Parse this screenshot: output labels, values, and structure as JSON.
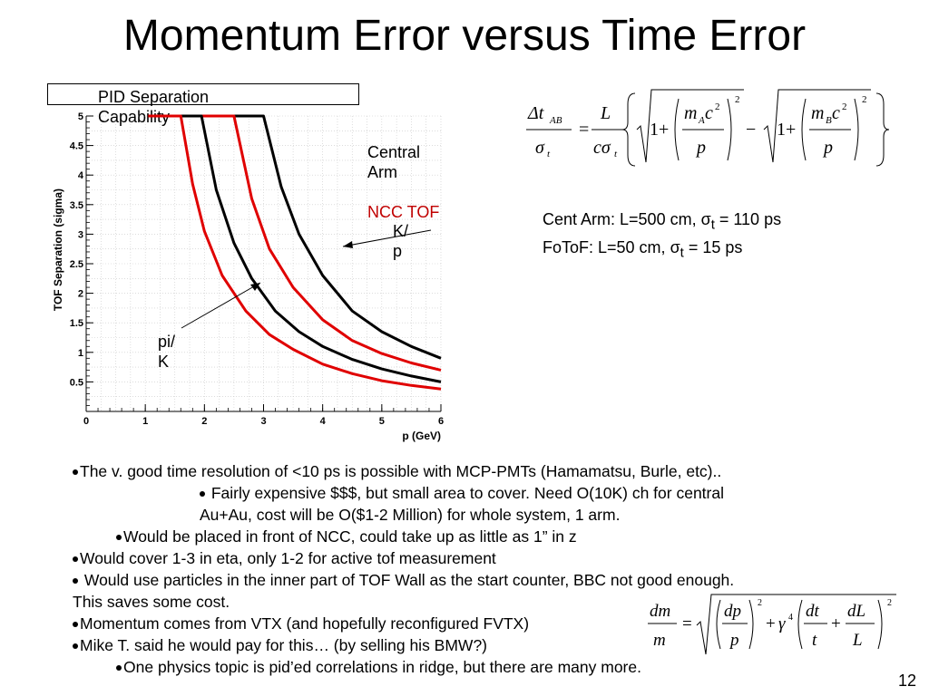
{
  "slide": {
    "title": "Momentum Error versus Time Error",
    "pid_label": "PID Separation\nCapability",
    "central_arm": "Central\nArm",
    "ncc_tof": "NCC TOF",
    "kp_label": "K/\np",
    "pik_label": "pi/\nK",
    "params": [
      {
        "prefix": "Cent Arm:  L=500 cm, ",
        "sigma": "σ",
        "sub": "t",
        "suffix": " = 110 ps"
      },
      {
        "prefix": "FoToF: L=50 cm,   ",
        "sigma": "σ",
        "sub": "t",
        "suffix": " = 15 ps"
      }
    ],
    "page_number": "12"
  },
  "formula1": {
    "lhs_num": "Δt",
    "lhs_num_sub": "AB",
    "lhs_den": "σ",
    "lhs_den_sub": "t",
    "eq": "=",
    "frac_num": "L",
    "frac_den": "cσ",
    "frac_den_sub": "t",
    "one": "1+",
    "term_a_num": "m",
    "term_a_sub": "A",
    "term_a_c": "c",
    "sq": "2",
    "term_den": "p",
    "minus": "−",
    "term_b_num": "m",
    "term_b_sub": "B"
  },
  "formula2": {
    "lhs_num": "dm",
    "lhs_den": "m",
    "eq": "=",
    "dp": "dp",
    "p": "p",
    "plus": "+",
    "gamma": "γ",
    "four": "4",
    "dt": "dt",
    "t": "t",
    "dL": "dL",
    "L": "L",
    "sq": "2"
  },
  "bullets": [
    {
      "indent": 0,
      "text": "The v. good time resolution of <10 ps is possible with MCP-PMTs (Hamamatsu, Burle, etc).."
    },
    {
      "indent": 1,
      "text": " Fairly expensive $$$, but small area to cover.   Need O(10K) ch for central"
    },
    {
      "indent": 1.1,
      "text": "Au+Au, cost will be O($1-2 Million) for whole system, 1 arm.",
      "nodot": true
    },
    {
      "indent": 0.55,
      "text": "Would be placed in front of NCC, could take up as little as 1” in z"
    },
    {
      "indent": 0,
      "text": "Would cover 1-3 in eta, only 1-2 for active tof measurement"
    },
    {
      "indent": 0,
      "text": "  Would use particles in the inner part of TOF Wall as the start counter, BBC not good enough."
    },
    {
      "indent": 0,
      "text": "This saves some cost.",
      "nodot": true
    },
    {
      "indent": 0,
      "text": "Momentum comes from VTX (and hopefully reconfigured FVTX)"
    },
    {
      "indent": 0,
      "text": "Mike T. said he would pay for this… (by selling his BMW?)"
    },
    {
      "indent": 0.55,
      "text": "One physics topic is pid’ed correlations in ridge, but there are many more."
    }
  ],
  "chart_data": {
    "type": "line",
    "xlabel": "p (GeV)",
    "ylabel": "TOF Separation (sigma)",
    "xlim": [
      0,
      6
    ],
    "ylim": [
      0,
      5
    ],
    "grid": true,
    "xticks": [
      "0",
      "1",
      "2",
      "3",
      "4",
      "5",
      "6"
    ],
    "yticks": [
      "0.5",
      "1",
      "1.5",
      "2",
      "2.5",
      "3",
      "3.5",
      "4",
      "4.5",
      "5"
    ],
    "colors": {
      "black": "#000000",
      "red": "#e00000",
      "grid": "#c8c8c8"
    },
    "series": [
      {
        "color": "#000000",
        "x": [
          3.0,
          3.3,
          3.6,
          4.0,
          4.5,
          5.0,
          5.5,
          6.0
        ],
        "y": [
          5.0,
          3.8,
          3.0,
          2.3,
          1.7,
          1.35,
          1.1,
          0.9
        ]
      },
      {
        "color": "#e00000",
        "x": [
          2.5,
          2.8,
          3.1,
          3.5,
          4.0,
          4.5,
          5.0,
          5.5,
          6.0
        ],
        "y": [
          5.0,
          3.6,
          2.75,
          2.1,
          1.55,
          1.2,
          0.98,
          0.82,
          0.7
        ]
      },
      {
        "color": "#000000",
        "x": [
          1.95,
          2.2,
          2.5,
          2.8,
          3.2,
          3.6,
          4.0,
          4.5,
          5.0,
          5.5,
          6.0
        ],
        "y": [
          5.0,
          3.75,
          2.85,
          2.25,
          1.7,
          1.35,
          1.1,
          0.88,
          0.72,
          0.6,
          0.5
        ]
      },
      {
        "color": "#e00000",
        "x": [
          1.6,
          1.8,
          2.0,
          2.3,
          2.7,
          3.1,
          3.5,
          4.0,
          4.5,
          5.0,
          5.5,
          6.0
        ],
        "y": [
          5.0,
          3.85,
          3.05,
          2.3,
          1.7,
          1.3,
          1.05,
          0.8,
          0.64,
          0.52,
          0.44,
          0.38
        ]
      }
    ]
  }
}
